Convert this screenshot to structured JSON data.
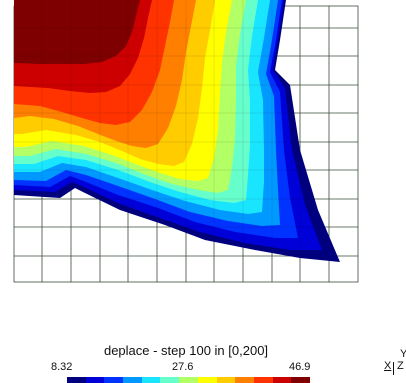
{
  "legend": {
    "title": "deplace - step 100 in [0,200]",
    "min_label": "8.32",
    "mid_label": "27.6",
    "max_label": "46.9",
    "colors": [
      "#00007f",
      "#0000d8",
      "#0033ff",
      "#0099ff",
      "#19e5ff",
      "#66ffcc",
      "#b3ff66",
      "#ffff00",
      "#ffcc00",
      "#ff7f00",
      "#ff3300",
      "#cc0000",
      "#7f0000"
    ]
  },
  "axes": {
    "x_label": "X",
    "y_label": "Y",
    "z_label": "Z"
  },
  "mesh": {
    "grid_color": "#3a4a3a",
    "background_color": "#ffffff"
  }
}
